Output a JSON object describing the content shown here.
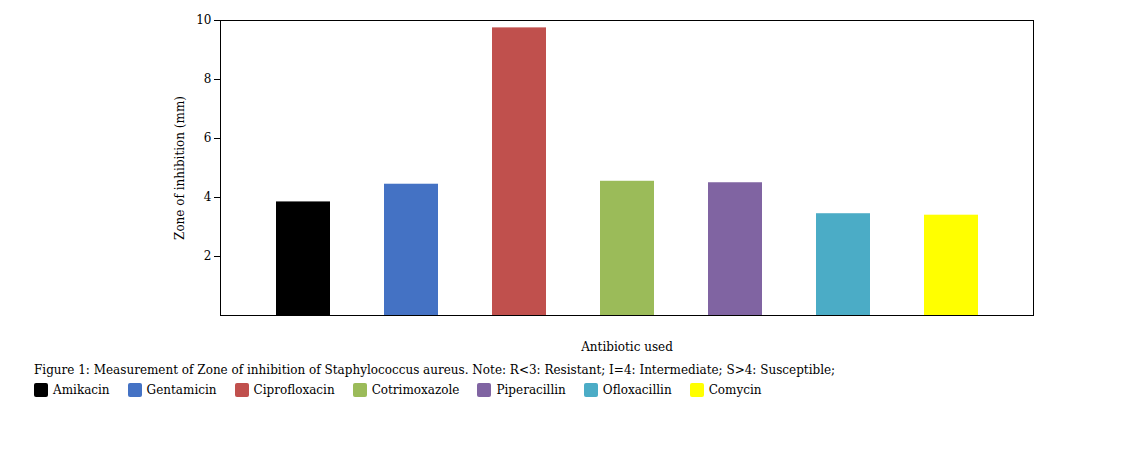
{
  "chart_data": {
    "type": "bar",
    "categories": [
      "Amikacin",
      "Gentamicin",
      "Ciprofloxacin",
      "Cotrimoxazole",
      "Piperacillin",
      "Ofloxacillin",
      "Comycin"
    ],
    "values": [
      3.85,
      4.45,
      9.75,
      4.55,
      4.5,
      3.45,
      3.4
    ],
    "colors": [
      "#000000",
      "#4472C4",
      "#C0504D",
      "#9BBB59",
      "#8064A2",
      "#4BACC6",
      "#FFFF00"
    ],
    "ylabel": "Zone of inhibition (mm)",
    "xlabel": "Antibiotic used",
    "ylim": [
      0,
      10
    ],
    "yticks": [
      2,
      4,
      6,
      8,
      10
    ],
    "grid": false,
    "tick_labels": "y",
    "legend": "bottom",
    "caption": "Figure 1: Measurement of Zone of inhibition of Staphylococcus aureus. Note: R<3: Resistant; I=4: Intermediate; S>4: Susceptible;"
  }
}
